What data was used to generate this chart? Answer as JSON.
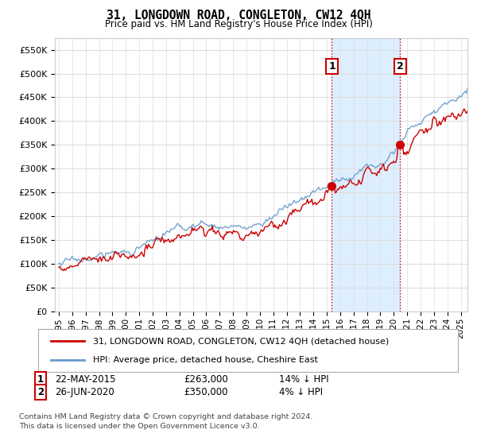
{
  "title": "31, LONGDOWN ROAD, CONGLETON, CW12 4QH",
  "subtitle": "Price paid vs. HM Land Registry's House Price Index (HPI)",
  "ylabel_ticks": [
    "£0",
    "£50K",
    "£100K",
    "£150K",
    "£200K",
    "£250K",
    "£300K",
    "£350K",
    "£400K",
    "£450K",
    "£500K",
    "£550K"
  ],
  "ytick_values": [
    0,
    50000,
    100000,
    150000,
    200000,
    250000,
    300000,
    350000,
    400000,
    450000,
    500000,
    550000
  ],
  "ylim": [
    0,
    575000
  ],
  "xlim_start": 1994.7,
  "xlim_end": 2025.5,
  "xtick_labels": [
    "1995",
    "1996",
    "1997",
    "1998",
    "1999",
    "2000",
    "2001",
    "2002",
    "2003",
    "2004",
    "2005",
    "2006",
    "2007",
    "2008",
    "2009",
    "2010",
    "2011",
    "2012",
    "2013",
    "2014",
    "2015",
    "2016",
    "2017",
    "2018",
    "2019",
    "2020",
    "2021",
    "2022",
    "2023",
    "2024",
    "2025"
  ],
  "legend_line1": "31, LONGDOWN ROAD, CONGLETON, CW12 4QH (detached house)",
  "legend_line2": "HPI: Average price, detached house, Cheshire East",
  "legend_line1_color": "#cc0000",
  "legend_line2_color": "#6699cc",
  "transaction1_label": "1",
  "transaction1_date": "22-MAY-2015",
  "transaction1_price": "£263,000",
  "transaction1_pct": "14% ↓ HPI",
  "transaction1_x": 2015.38,
  "transaction1_y": 263000,
  "transaction2_label": "2",
  "transaction2_date": "26-JUN-2020",
  "transaction2_price": "£350,000",
  "transaction2_pct": "4% ↓ HPI",
  "transaction2_x": 2020.47,
  "transaction2_y": 350000,
  "shaded_region_color": "#ddeeff",
  "vline_color": "#cc0000",
  "grid_color": "#dddddd",
  "background_color": "#ffffff",
  "footnote": "Contains HM Land Registry data © Crown copyright and database right 2024.\nThis data is licensed under the Open Government Licence v3.0."
}
